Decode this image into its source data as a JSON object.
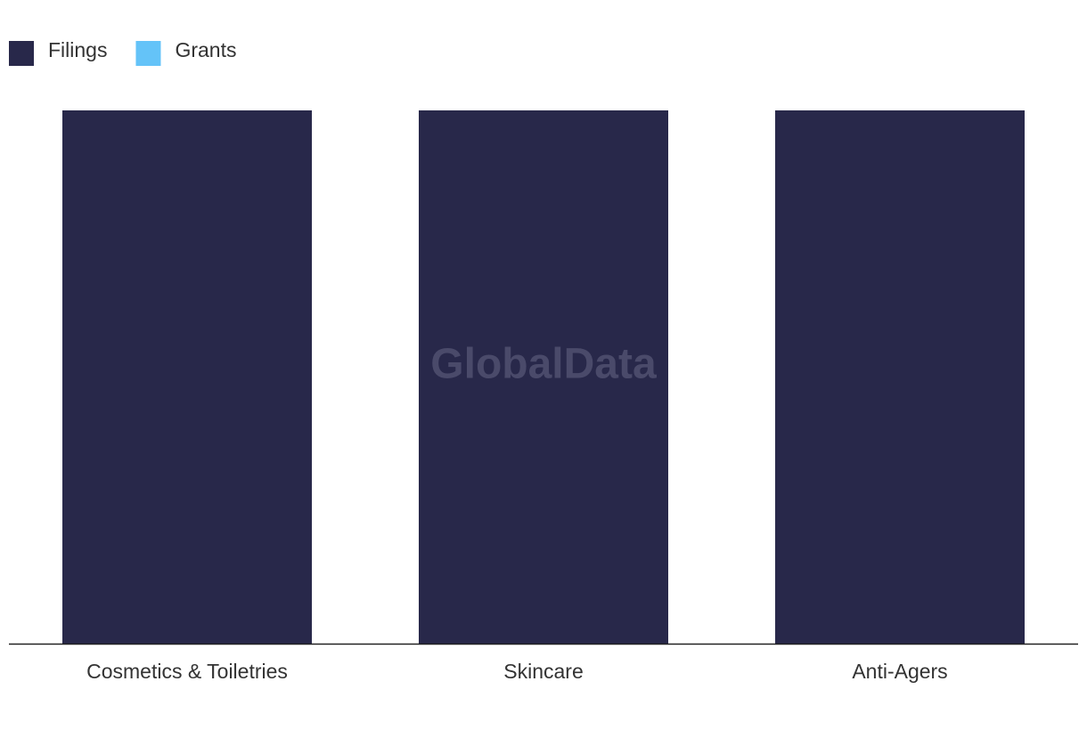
{
  "chart_data": {
    "type": "bar",
    "watermark": "GlobalData",
    "categories": [
      "Cosmetics & Toiletries",
      "Skincare",
      "Anti-Agers"
    ],
    "series": [
      {
        "name": "Filings",
        "color": "#28284a",
        "values": [
          1,
          1,
          1
        ]
      },
      {
        "name": "Grants",
        "color": "#64c3f8",
        "values": [
          0,
          0,
          0
        ]
      }
    ]
  }
}
